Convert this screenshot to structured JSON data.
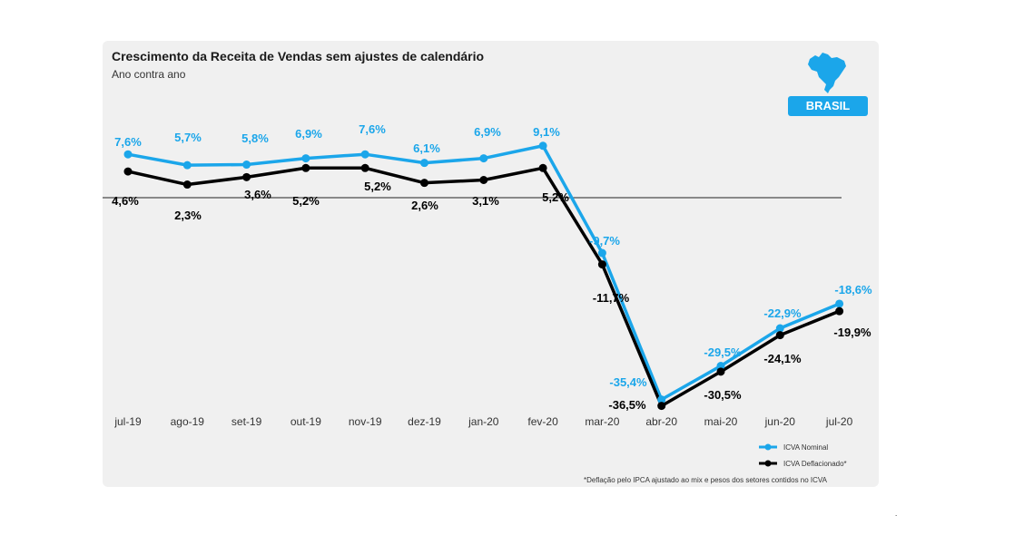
{
  "colors": {
    "nominal": "#1ba6ea",
    "deflated": "#000000",
    "background": "#f0f0f0"
  },
  "badge": "BRASIL",
  "badge_icon": "brazil-map-icon",
  "footnote": "*Deflação pelo IPCA ajustado ao mix e pesos dos setores contidos no ICVA",
  "chart_data": {
    "type": "line",
    "title": "Crescimento da Receita de Vendas sem ajustes de calendário",
    "subtitle": "Ano contra ano",
    "categories": [
      "jul-19",
      "ago-19",
      "set-19",
      "out-19",
      "nov-19",
      "dez-19",
      "jan-20",
      "fev-20",
      "mar-20",
      "abr-20",
      "mai-20",
      "jun-20",
      "jul-20"
    ],
    "series": [
      {
        "name": "ICVA Nominal",
        "values": [
          7.6,
          5.7,
          5.8,
          6.9,
          7.6,
          6.1,
          6.9,
          9.1,
          -9.7,
          -35.4,
          -29.5,
          -22.9,
          -18.6
        ],
        "labels": [
          "7,6%",
          "5,7%",
          "5,8%",
          "6,9%",
          "7,6%",
          "6,1%",
          "6,9%",
          "9,1%",
          "-9,7%",
          "-35,4%",
          "-29,5%",
          "-22,9%",
          "-18,6%"
        ]
      },
      {
        "name": "ICVA Deflacionado*",
        "values": [
          4.6,
          2.3,
          3.6,
          5.2,
          5.2,
          2.6,
          3.1,
          5.2,
          -11.7,
          -36.5,
          -30.5,
          -24.1,
          -19.9
        ],
        "labels": [
          "4,6%",
          "2,3%",
          "3,6%",
          "5,2%",
          "5,2%",
          "2,6%",
          "3,1%",
          "5,2%",
          "-11,7%",
          "-36,5%",
          "-30,5%",
          "-24,1%",
          "-19,9%"
        ]
      }
    ],
    "zero_line": true,
    "grid": false,
    "legend_position": "bottom-right"
  }
}
